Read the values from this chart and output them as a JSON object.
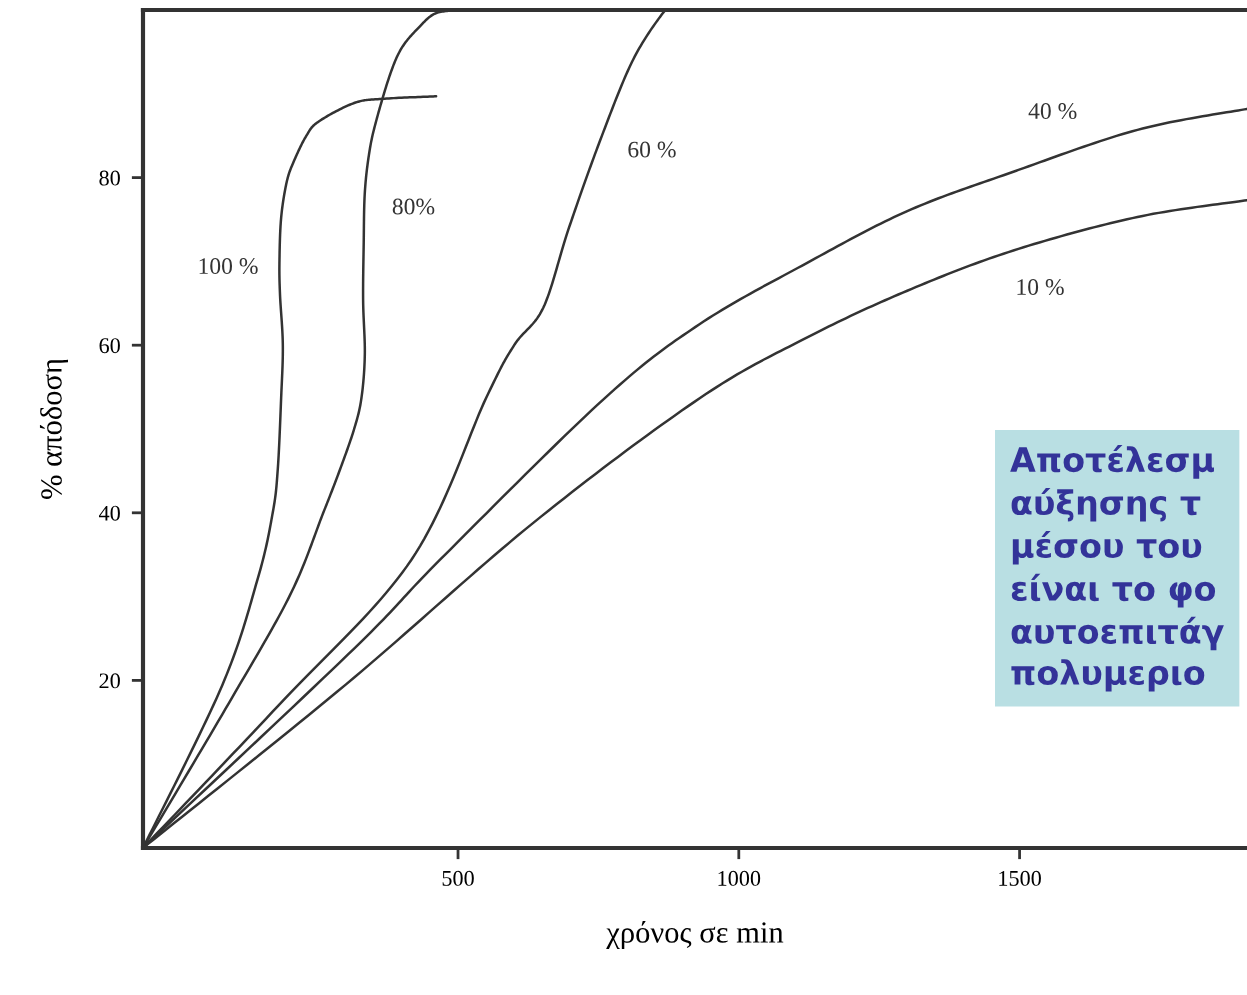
{
  "chart_data": {
    "type": "line",
    "xlabel": "χρόνος σε min",
    "ylabel": "% απόδοση",
    "xlim": [
      -61,
      1905
    ],
    "ylim": [
      0,
      100
    ],
    "xticks": [
      500,
      1000,
      1500
    ],
    "yticks": [
      20,
      40,
      60,
      80
    ],
    "grid": false,
    "legend": false,
    "marker": "none",
    "line_style": "solid",
    "series": [
      {
        "name": "100 %",
        "color": "#333333",
        "x": [
          -61,
          80,
          144,
          170,
          179,
          185,
          188,
          183,
          182,
          185,
          195,
          208,
          230,
          252,
          315,
          366,
          461
        ],
        "values": [
          0,
          19.4,
          32.3,
          40,
          45.2,
          53.7,
          60,
          66,
          70,
          75.2,
          79.5,
          82,
          85,
          86.7,
          88.9,
          89.4,
          89.7
        ]
      },
      {
        "name": "80%",
        "color": "#333333",
        "x": [
          -61,
          92,
          201,
          260,
          290,
          315,
          328,
          334,
          331,
          332,
          334,
          342,
          354,
          379,
          400,
          430,
          460,
          504
        ],
        "values": [
          0,
          17.3,
          30.2,
          40,
          45.2,
          50,
          53.7,
          58.9,
          65.3,
          72,
          78.2,
          83,
          86.7,
          92.3,
          95.5,
          97.9,
          99.6,
          100
        ]
      },
      {
        "name": "60 %",
        "color": "#333333",
        "x": [
          -61,
          180,
          417,
          550,
          600,
          652,
          697,
          754,
          812,
          869,
          880
        ],
        "values": [
          0,
          17,
          34.4,
          53.7,
          60,
          64.5,
          73.9,
          84.6,
          94.1,
          100,
          100
        ]
      },
      {
        "name": "40 %",
        "color": "#333333",
        "x": [
          -61,
          315,
          468,
          760,
          930,
          1121,
          1300,
          1489,
          1710,
          1905
        ],
        "values": [
          0,
          23.8,
          34.4,
          53.6,
          62.5,
          69.8,
          76,
          80.7,
          85.7,
          88.2
        ]
      },
      {
        "name": "10 %",
        "color": "#333333",
        "x": [
          -61,
          300,
          634,
          931,
          1121,
          1300,
          1489,
          1710,
          1905
        ],
        "values": [
          0,
          19.5,
          38.8,
          53.7,
          60.9,
          66.5,
          71.3,
          75.3,
          77.3
        ]
      }
    ],
    "annotations": [
      "Αποτέλεσμ\nαύξησης τ\nμέσου του\nείναι το φο\nαυτοεπιτάγ\nπολυμεριο"
    ]
  }
}
